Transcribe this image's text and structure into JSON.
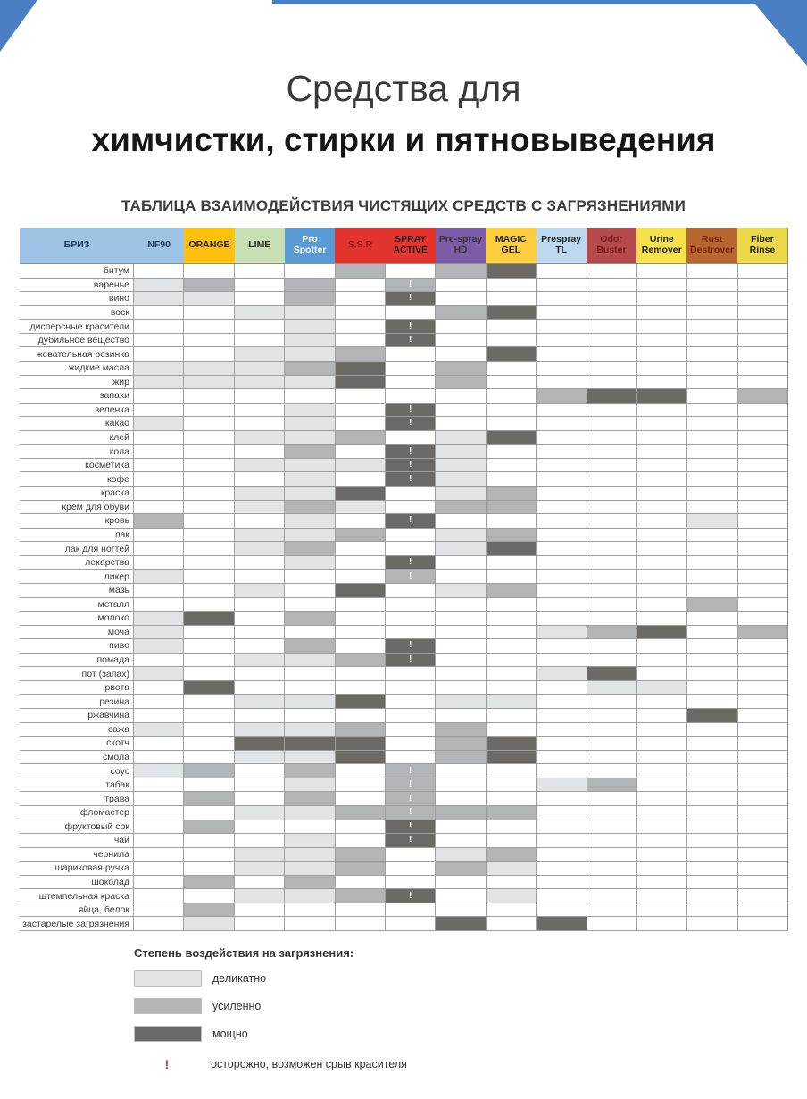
{
  "page": {
    "title_line1": "Средства для",
    "title_line2": "химчистки, стирки и пятновыведения",
    "subtitle": "ТАБЛИЦА ВЗАИМОДЕЙСТВИЯ ЧИСТЯЩИХ СРЕДСТВ С ЗАГРЯЗНЕНИЯМИ",
    "accent_blue": "#4b7fc3"
  },
  "table": {
    "headers": [
      {
        "label": "БРИЗ",
        "bg": "#9dc3e6",
        "fg": "#1f3a5f"
      },
      {
        "label": "NF90",
        "bg": "#9dc3e6",
        "fg": "#1f3a5f"
      },
      {
        "label": "ORANGE",
        "bg": "#ffc10e",
        "fg": "#222222"
      },
      {
        "label": "LIME",
        "bg": "#c6e0b4",
        "fg": "#222222"
      },
      {
        "label": "Pro Spotter",
        "bg": "#5b9bd5",
        "fg": "#ffffff"
      },
      {
        "label": "S.S.R",
        "bg": "#e2332d",
        "fg": "#8c1d1d"
      },
      {
        "label": "SPRAY ACTIVE",
        "bg": "#e2332d",
        "fg": "#222222"
      },
      {
        "label": "Pre-spray HD",
        "bg": "#7c5ca6",
        "fg": "#333333"
      },
      {
        "label": "MAGIC GEL",
        "bg": "#fece3e",
        "fg": "#222222"
      },
      {
        "label": "Prespray TL",
        "bg": "#bdd7ee",
        "fg": "#222222"
      },
      {
        "label": "Odor Buster",
        "bg": "#b54a4a",
        "fg": "#7a1c1c"
      },
      {
        "label": "Urine Remover",
        "bg": "#f7e14b",
        "fg": "#222222"
      },
      {
        "label": "Rust Destroyer",
        "bg": "#b5672f",
        "fg": "#7b2412"
      },
      {
        "label": "Fiber Rinse",
        "bg": "#ecd94a",
        "fg": "#222222"
      }
    ]
  },
  "chart_data": {
    "type": "heatmap",
    "title": "ТАБЛИЦА ВЗАИМОДЕЙСТВИЯ ЧИСТЯЩИХ СРЕДСТВ С ЗАГРЯЗНЕНИЯМИ",
    "value_scale": {
      "1": "деликатно",
      "2": "усиленно",
      "3": "мощно",
      "!": "осторожно, возможен срыв красителя"
    },
    "colors": {
      "1": "#e2e3e5",
      "2": "#b2b4b6",
      "3": "#6c6a67"
    },
    "columns": [
      "NF90",
      "ORANGE",
      "LIME",
      "Pro Spotter",
      "S.S.R",
      "SPRAY ACTIVE",
      "Pre-spray HD",
      "MAGIC GEL",
      "Prespray TL",
      "Odor Buster",
      "Urine Remover",
      "Rust Destroyer",
      "Fiber Rinse"
    ],
    "rows": [
      "битум",
      "варенье",
      "вино",
      "воск",
      "дисперсные красители",
      "дубильное вещество",
      "жевательная резинка",
      "жидкие масла",
      "жир",
      "запахи",
      "зеленка",
      "какао",
      "клей",
      "кола",
      "косметика",
      "кофе",
      "краска",
      "крем для обуви",
      "кровь",
      "лак",
      "лак для ногтей",
      "лекарства",
      "ликер",
      "мазь",
      "металл",
      "молоко",
      "моча",
      "пиво",
      "помада",
      "пот (запах)",
      "рвота",
      "резина",
      "ржавчина",
      "сажа",
      "скотч",
      "смола",
      "соус",
      "табак",
      "трава",
      "фломастер",
      "фруктовый сок",
      "чай",
      "чернила",
      "шариковая ручка",
      "шоколад",
      "штемпельная краска",
      "яйца, белок",
      "застарелые загрязнения"
    ],
    "values": [
      [
        "",
        "",
        "",
        "",
        "2",
        "",
        "2",
        "3",
        "",
        "",
        "",
        "",
        ""
      ],
      [
        "1",
        "2",
        "",
        "2",
        "",
        "2!",
        "",
        "",
        "",
        "",
        "",
        "",
        ""
      ],
      [
        "1",
        "1",
        "",
        "2",
        "",
        "3!",
        "",
        "",
        "",
        "",
        "",
        "",
        ""
      ],
      [
        "",
        "",
        "1",
        "1",
        "",
        "",
        "2",
        "3",
        "",
        "",
        "",
        "",
        ""
      ],
      [
        "",
        "",
        "",
        "1",
        "",
        "3!",
        "",
        "",
        "",
        "",
        "",
        "",
        ""
      ],
      [
        "",
        "",
        "",
        "1",
        "",
        "3!",
        "",
        "",
        "",
        "",
        "",
        "",
        ""
      ],
      [
        "",
        "",
        "1",
        "1",
        "2",
        "",
        "",
        "3",
        "",
        "",
        "",
        "",
        ""
      ],
      [
        "1",
        "1",
        "1",
        "2",
        "3",
        "",
        "2",
        "",
        "",
        "",
        "",
        "",
        ""
      ],
      [
        "1",
        "1",
        "1",
        "1",
        "3",
        "",
        "2",
        "",
        "",
        "",
        "",
        "",
        ""
      ],
      [
        "",
        "",
        "",
        "",
        "",
        "",
        "",
        "",
        "2",
        "3",
        "3",
        "",
        "2"
      ],
      [
        "",
        "",
        "",
        "1",
        "",
        "3!",
        "",
        "",
        "",
        "",
        "",
        "",
        ""
      ],
      [
        "1",
        "",
        "",
        "1",
        "",
        "3!",
        "",
        "",
        "",
        "",
        "",
        "",
        ""
      ],
      [
        "",
        "",
        "1",
        "1",
        "2",
        "",
        "1",
        "3",
        "",
        "",
        "",
        "",
        ""
      ],
      [
        "",
        "",
        "",
        "2",
        "",
        "3!",
        "1",
        "",
        "",
        "",
        "",
        "",
        ""
      ],
      [
        "",
        "",
        "1",
        "1",
        "1",
        "3!",
        "1",
        "",
        "",
        "",
        "",
        "",
        ""
      ],
      [
        "",
        "",
        "",
        "1",
        "",
        "3!",
        "1",
        "",
        "",
        "",
        "",
        "",
        ""
      ],
      [
        "",
        "",
        "1",
        "1",
        "3",
        "",
        "1",
        "2",
        "",
        "",
        "",
        "",
        ""
      ],
      [
        "",
        "",
        "1",
        "2",
        "1",
        "",
        "2",
        "2",
        "",
        "",
        "",
        "",
        ""
      ],
      [
        "2",
        "",
        "",
        "1",
        "",
        "3!",
        "",
        "",
        "",
        "",
        "",
        "1",
        ""
      ],
      [
        "",
        "",
        "1",
        "1",
        "2",
        "",
        "1",
        "2",
        "",
        "",
        "",
        "",
        ""
      ],
      [
        "",
        "",
        "1",
        "2",
        "",
        "",
        "1",
        "3",
        "",
        "",
        "",
        "",
        ""
      ],
      [
        "",
        "",
        "",
        "1",
        "",
        "3!",
        "",
        "",
        "",
        "",
        "",
        "",
        ""
      ],
      [
        "1",
        "",
        "",
        "",
        "",
        "2!",
        "",
        "",
        "",
        "",
        "",
        "",
        ""
      ],
      [
        "",
        "",
        "1",
        "",
        "3",
        "",
        "1",
        "2",
        "",
        "",
        "",
        "",
        ""
      ],
      [
        "",
        "",
        "",
        "",
        "",
        "",
        "",
        "",
        "",
        "",
        "",
        "2",
        ""
      ],
      [
        "1",
        "3",
        "",
        "2",
        "",
        "",
        "",
        "",
        "",
        "",
        "",
        "",
        ""
      ],
      [
        "1",
        "",
        "",
        "",
        "",
        "",
        "",
        "",
        "1",
        "2",
        "3",
        "",
        "2"
      ],
      [
        "1",
        "",
        "",
        "2",
        "",
        "3!",
        "",
        "",
        "",
        "",
        "",
        "",
        ""
      ],
      [
        "",
        "",
        "1",
        "1",
        "2",
        "3!",
        "",
        "",
        "",
        "",
        "",
        "",
        ""
      ],
      [
        "1",
        "",
        "",
        "",
        "",
        "",
        "",
        "",
        "1",
        "3",
        "",
        "",
        ""
      ],
      [
        "",
        "3",
        "",
        "",
        "",
        "",
        "",
        "",
        "",
        "1",
        "1",
        "",
        ""
      ],
      [
        "",
        "",
        "1",
        "1",
        "3",
        "",
        "1",
        "1",
        "",
        "",
        "",
        "",
        ""
      ],
      [
        "",
        "",
        "",
        "",
        "",
        "",
        "",
        "",
        "",
        "",
        "",
        "3",
        ""
      ],
      [
        "1",
        "",
        "1",
        "1",
        "2",
        "",
        "2",
        "",
        "",
        "",
        "",
        "",
        ""
      ],
      [
        "",
        "",
        "3",
        "3",
        "3",
        "",
        "2",
        "3",
        "",
        "",
        "",
        "",
        ""
      ],
      [
        "",
        "",
        "1",
        "1",
        "3",
        "",
        "2",
        "3",
        "",
        "",
        "",
        "",
        ""
      ],
      [
        "1",
        "2",
        "",
        "2",
        "",
        "2!",
        "",
        "",
        "",
        "",
        "",
        "",
        ""
      ],
      [
        "",
        "",
        "",
        "1",
        "",
        "2!",
        "",
        "",
        "1",
        "2",
        "",
        "",
        ""
      ],
      [
        "",
        "2",
        "",
        "2",
        "",
        "2!",
        "",
        "",
        "",
        "",
        "",
        "",
        ""
      ],
      [
        "",
        "",
        "1",
        "1",
        "2",
        "2!",
        "2",
        "2",
        "",
        "",
        "",
        "",
        ""
      ],
      [
        "",
        "2",
        "",
        "",
        "",
        "3!",
        "",
        "",
        "",
        "",
        "",
        "",
        ""
      ],
      [
        "",
        "",
        "",
        "1",
        "",
        "3!",
        "",
        "",
        "",
        "",
        "",
        "",
        ""
      ],
      [
        "",
        "",
        "1",
        "1",
        "2",
        "",
        "1",
        "2",
        "",
        "",
        "",
        "",
        ""
      ],
      [
        "",
        "",
        "1",
        "1",
        "2",
        "",
        "2",
        "1",
        "",
        "",
        "",
        "",
        ""
      ],
      [
        "",
        "2",
        "",
        "2",
        "",
        "",
        "",
        "",
        "",
        "",
        "",
        "",
        ""
      ],
      [
        "",
        "",
        "1",
        "1",
        "2",
        "3!",
        "",
        "1",
        "",
        "",
        "",
        "",
        ""
      ],
      [
        "",
        "2",
        "",
        "",
        "",
        "",
        "",
        "",
        "",
        "",
        "",
        "",
        ""
      ],
      [
        "",
        "1",
        "",
        "",
        "",
        "",
        "3",
        "",
        "3",
        "",
        "",
        "",
        ""
      ]
    ]
  },
  "legend": {
    "title": "Степень воздействия на загрязнения:",
    "items": [
      {
        "level": "1",
        "label": "деликатно"
      },
      {
        "level": "2",
        "label": "усиленно"
      },
      {
        "level": "3",
        "label": "мощно"
      }
    ],
    "warning_mark": "!",
    "warning_color": "#c0392b",
    "warning_label": "осторожно, возможен срыв красителя"
  }
}
